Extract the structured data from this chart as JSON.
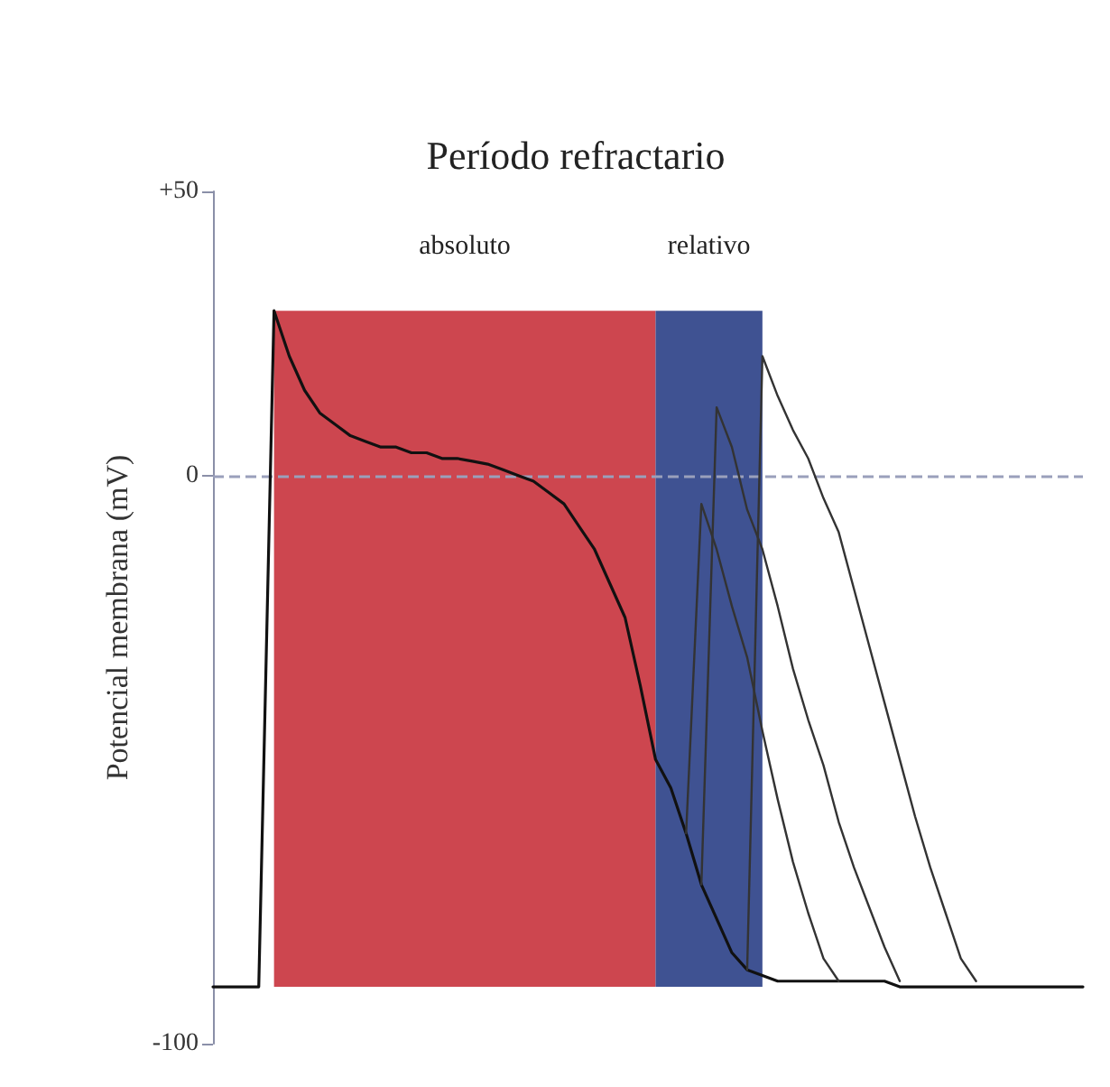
{
  "chart_data": {
    "type": "line",
    "title": "Período refractario",
    "ylabel": "Potencial membrana (mV)",
    "categories": [
      null,
      null,
      null,
      null,
      null,
      null,
      null,
      null,
      null,
      null,
      null,
      null,
      null,
      null,
      null,
      null,
      null,
      null,
      null,
      null,
      null,
      null,
      null,
      null,
      null,
      null,
      null,
      null,
      null,
      null,
      null,
      null,
      null,
      null,
      null,
      null,
      null,
      null,
      null,
      null,
      null,
      null,
      null,
      null,
      null,
      null,
      null,
      null,
      null,
      null,
      null,
      null,
      null,
      null,
      null,
      null,
      null,
      null
    ],
    "series": [
      {
        "color": "#111111",
        "values": [
          -90,
          -90,
          -90,
          -90,
          29,
          21,
          15,
          11,
          9,
          7,
          6,
          5,
          5,
          4,
          4,
          3,
          3,
          2.5,
          2,
          1,
          0,
          -1,
          -3,
          -5,
          -9,
          -13,
          -19,
          -25,
          -37,
          -50,
          -55,
          -63,
          -72,
          -78,
          -84,
          -87,
          -88,
          -89,
          -89,
          -89,
          -89,
          -89,
          -89,
          -89,
          -89,
          -90,
          -90,
          -90,
          -90,
          -90,
          -90,
          -90,
          -90,
          -90,
          -90,
          -90,
          -90,
          -90
        ]
      },
      {
        "color": "#333333",
        "values": [
          null,
          null,
          null,
          null,
          null,
          null,
          null,
          null,
          null,
          null,
          null,
          null,
          null,
          null,
          null,
          null,
          null,
          null,
          null,
          null,
          null,
          null,
          null,
          null,
          null,
          null,
          null,
          null,
          null,
          null,
          null,
          -63,
          -5,
          -13,
          -23,
          -32,
          -45,
          -57,
          -68,
          -77,
          -85,
          -89,
          null,
          null,
          null,
          null,
          null,
          null,
          null,
          null,
          null,
          null,
          null,
          null,
          null,
          null,
          null,
          null
        ]
      },
      {
        "color": "#333333",
        "values": [
          null,
          null,
          null,
          null,
          null,
          null,
          null,
          null,
          null,
          null,
          null,
          null,
          null,
          null,
          null,
          null,
          null,
          null,
          null,
          null,
          null,
          null,
          null,
          null,
          null,
          null,
          null,
          null,
          null,
          null,
          null,
          null,
          -72,
          12,
          5,
          -6,
          -13,
          -23,
          -34,
          -43,
          -51,
          -61,
          -69,
          -76,
          -83,
          -89,
          null,
          null,
          null,
          null,
          null,
          null,
          null,
          null,
          null,
          null,
          null,
          null
        ]
      },
      {
        "color": "#333333",
        "values": [
          null,
          null,
          null,
          null,
          null,
          null,
          null,
          null,
          null,
          null,
          null,
          null,
          null,
          null,
          null,
          null,
          null,
          null,
          null,
          null,
          null,
          null,
          null,
          null,
          null,
          null,
          null,
          null,
          null,
          null,
          null,
          null,
          null,
          null,
          null,
          -87,
          21,
          14,
          8,
          3,
          -4,
          -10,
          -20,
          -30,
          -40,
          -50,
          -60,
          -69,
          -77,
          -85,
          -89,
          null,
          null,
          null,
          null,
          null,
          null,
          null
        ]
      }
    ],
    "ylim": [
      -100,
      50
    ],
    "yticks": [
      {
        "value": 50,
        "label": "+50"
      },
      0,
      -100
    ],
    "ref_lines": [
      {
        "axis": "y",
        "value": 0,
        "color": "#9aa0bb",
        "line_style": "dashed"
      }
    ],
    "annotations": [
      "absoluto",
      "relativo"
    ],
    "tick_labels": "y",
    "line_style": "solid",
    "grid": false
  }
}
